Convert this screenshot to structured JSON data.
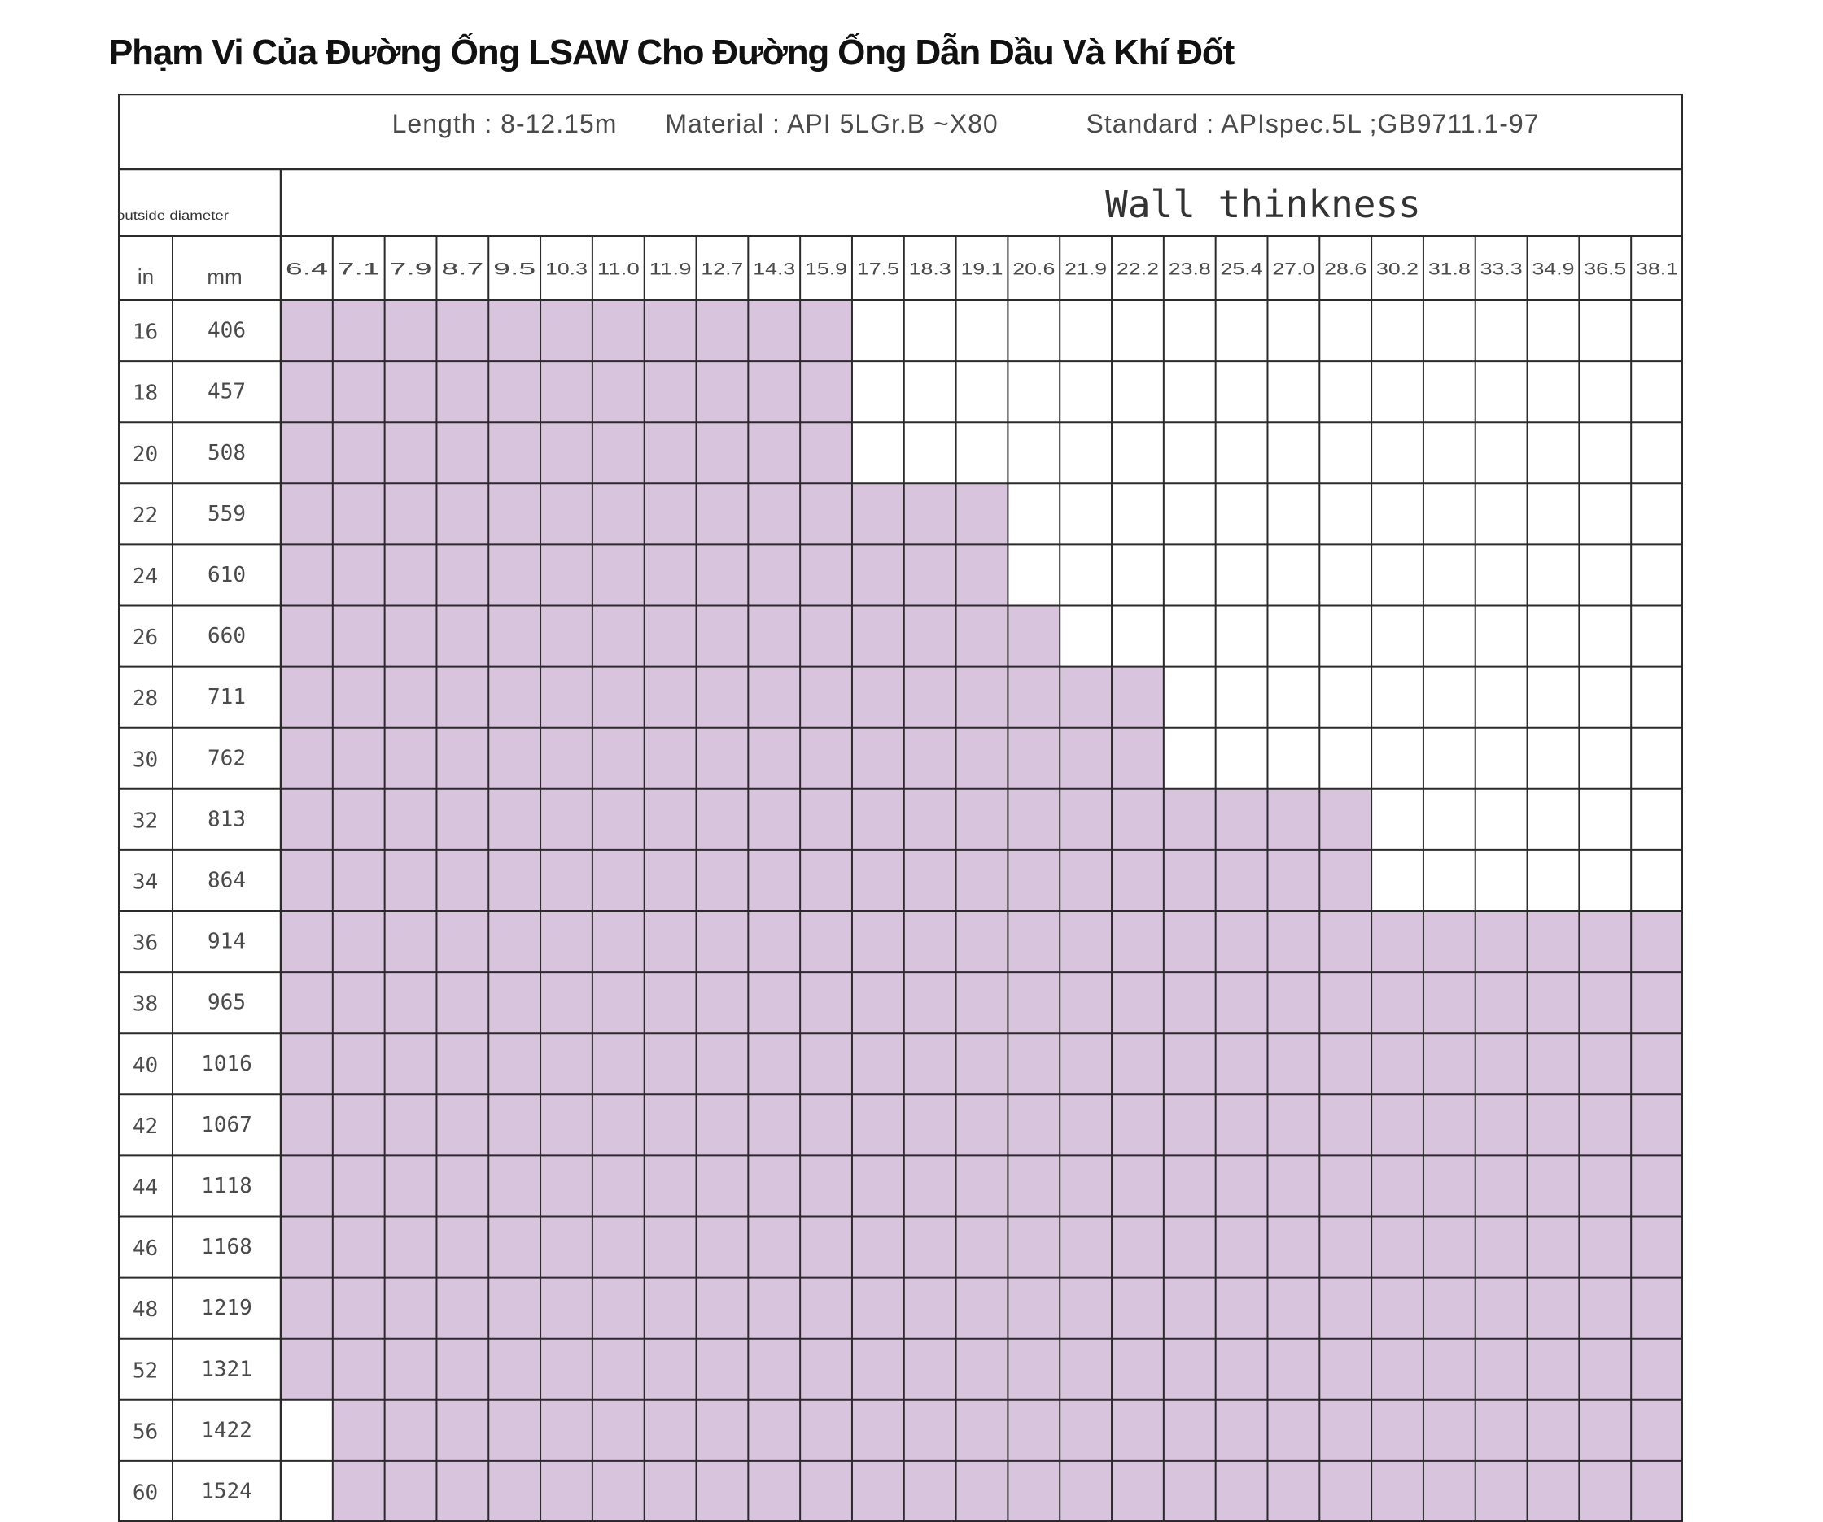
{
  "title": "Phạm Vi Của Đường Ống LSAW Cho Đường Ống Dẫn Dầu Và Khí Đốt",
  "header": {
    "length": "Length : 8-12.15m",
    "material": "Material : API 5LGr.B ~X80",
    "standard": "Standard : APIspec.5L ;GB9711.1-97"
  },
  "table": {
    "outside_diameter_label": "outside diameter",
    "wall_label": "Wall thinkness",
    "unit_in": "in",
    "unit_mm": "mm",
    "thicknesses": [
      "6.4",
      "7.1",
      "7.9",
      "8.7",
      "9.5",
      "10.3",
      "11.0",
      "11.9",
      "12.7",
      "14.3",
      "15.9",
      "17.5",
      "18.3",
      "19.1",
      "20.6",
      "21.9",
      "22.2",
      "23.8",
      "25.4",
      "27.0",
      "28.6",
      "30.2",
      "31.8",
      "33.3",
      "34.9",
      "36.5",
      "38.1"
    ],
    "rows": [
      {
        "in": "16",
        "mm": "406",
        "range": [
          1,
          11
        ]
      },
      {
        "in": "18",
        "mm": "457",
        "range": [
          1,
          11
        ]
      },
      {
        "in": "20",
        "mm": "508",
        "range": [
          1,
          11
        ]
      },
      {
        "in": "22",
        "mm": "559",
        "range": [
          1,
          14
        ]
      },
      {
        "in": "24",
        "mm": "610",
        "range": [
          1,
          14
        ]
      },
      {
        "in": "26",
        "mm": "660",
        "range": [
          1,
          15
        ]
      },
      {
        "in": "28",
        "mm": "711",
        "range": [
          1,
          17
        ]
      },
      {
        "in": "30",
        "mm": "762",
        "range": [
          1,
          17
        ]
      },
      {
        "in": "32",
        "mm": "813",
        "range": [
          1,
          21
        ]
      },
      {
        "in": "34",
        "mm": "864",
        "range": [
          1,
          21
        ]
      },
      {
        "in": "36",
        "mm": "914",
        "range": [
          1,
          27
        ]
      },
      {
        "in": "38",
        "mm": "965",
        "range": [
          1,
          27
        ]
      },
      {
        "in": "40",
        "mm": "1016",
        "range": [
          1,
          27
        ]
      },
      {
        "in": "42",
        "mm": "1067",
        "range": [
          1,
          27
        ]
      },
      {
        "in": "44",
        "mm": "1118",
        "range": [
          1,
          27
        ]
      },
      {
        "in": "46",
        "mm": "1168",
        "range": [
          1,
          27
        ]
      },
      {
        "in": "48",
        "mm": "1219",
        "range": [
          1,
          27
        ]
      },
      {
        "in": "52",
        "mm": "1321",
        "range": [
          1,
          27
        ]
      },
      {
        "in": "56",
        "mm": "1422",
        "range": [
          2,
          27
        ]
      },
      {
        "in": "60",
        "mm": "1524",
        "range": [
          2,
          27
        ]
      }
    ]
  },
  "colors": {
    "available": "#d8c5dd",
    "grid": "#2b2b2b",
    "text": "#4a4a4a"
  }
}
